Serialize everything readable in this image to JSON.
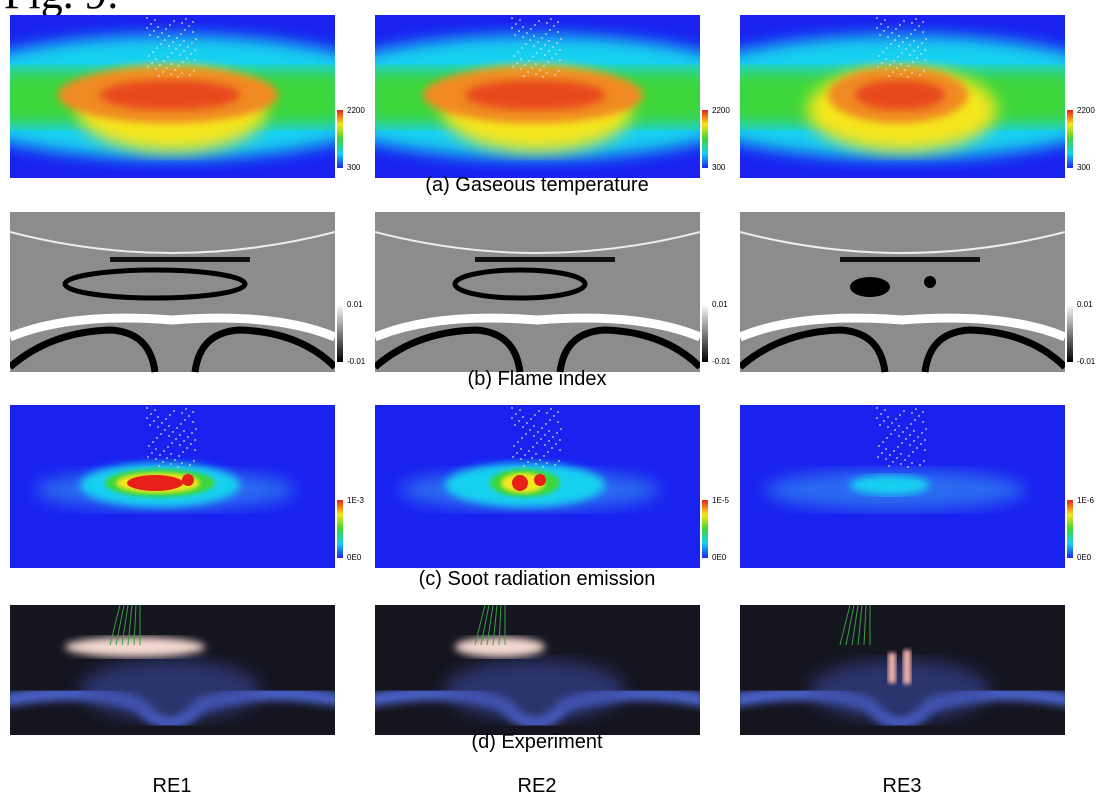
{
  "header": {
    "title": "Fig. 9:"
  },
  "rows": [
    {
      "caption": "(a) Gaseous temperature",
      "colorbars": [
        {
          "max": "2200",
          "min": "300"
        },
        {
          "max": "2200",
          "min": "300"
        },
        {
          "max": "2200",
          "min": "300"
        }
      ]
    },
    {
      "caption": "(b) Flame index",
      "colorbars": [
        {
          "max": "0.01",
          "min": "-0.01"
        },
        {
          "max": "0.01",
          "min": "-0.01"
        },
        {
          "max": "0.01",
          "min": "-0.01"
        }
      ]
    },
    {
      "caption": "(c) Soot radiation emission",
      "colorbars": [
        {
          "max": "1E-3",
          "min": "0E0"
        },
        {
          "max": "1E-5",
          "min": "0E0"
        },
        {
          "max": "1E-6",
          "min": "0E0"
        }
      ]
    },
    {
      "caption": "(d) Experiment"
    }
  ],
  "columns": [
    "RE1",
    "RE2",
    "RE3"
  ]
}
